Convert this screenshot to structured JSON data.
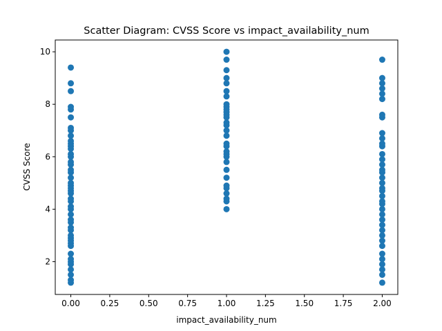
{
  "chart_data": {
    "type": "scatter",
    "title": "Scatter Diagram: CVSS Score vs impact_availability_num",
    "xlabel": "impact_availability_num",
    "ylabel": "CVSS Score",
    "xlim": [
      -0.1,
      2.1
    ],
    "ylim": [
      0.75,
      10.45
    ],
    "xticks": [
      "0.00",
      "0.25",
      "0.50",
      "0.75",
      "1.00",
      "1.25",
      "1.50",
      "1.75",
      "2.00"
    ],
    "yticks": [
      "2",
      "4",
      "6",
      "8",
      "10"
    ],
    "grid": false,
    "marker_color": "#1f77b4",
    "series": [
      {
        "x": 0,
        "y": [
          1.2,
          1.3,
          1.5,
          1.7,
          1.9,
          2.0,
          2.1,
          2.3,
          2.6,
          2.7,
          2.8,
          2.9,
          3.0,
          3.2,
          3.3,
          3.5,
          3.6,
          3.8,
          4.0,
          4.1,
          4.3,
          4.4,
          4.6,
          4.7,
          4.8,
          4.9,
          5.0,
          5.2,
          5.4,
          5.5,
          5.7,
          5.8,
          6.0,
          6.1,
          6.3,
          6.4,
          6.5,
          6.6,
          6.8,
          7.0,
          7.1,
          7.5,
          7.8,
          7.9,
          8.5,
          8.8,
          9.4
        ]
      },
      {
        "x": 1,
        "y": [
          4.0,
          4.3,
          4.4,
          4.6,
          4.8,
          4.9,
          5.2,
          5.5,
          5.8,
          6.0,
          6.1,
          6.2,
          6.4,
          6.5,
          6.8,
          7.0,
          7.2,
          7.3,
          7.5,
          7.6,
          7.7,
          7.8,
          7.9,
          8.0,
          8.3,
          8.5,
          8.8,
          9.0,
          9.3,
          9.7,
          10.0
        ]
      },
      {
        "x": 2,
        "y": [
          1.2,
          1.5,
          1.7,
          1.9,
          2.1,
          2.3,
          2.6,
          2.8,
          3.0,
          3.2,
          3.4,
          3.6,
          3.8,
          4.0,
          4.2,
          4.3,
          4.5,
          4.7,
          4.8,
          5.0,
          5.2,
          5.4,
          5.5,
          5.7,
          5.9,
          6.1,
          6.4,
          6.5,
          6.7,
          6.9,
          7.5,
          7.6,
          8.2,
          8.4,
          8.6,
          8.8,
          9.0,
          9.7
        ]
      }
    ]
  }
}
